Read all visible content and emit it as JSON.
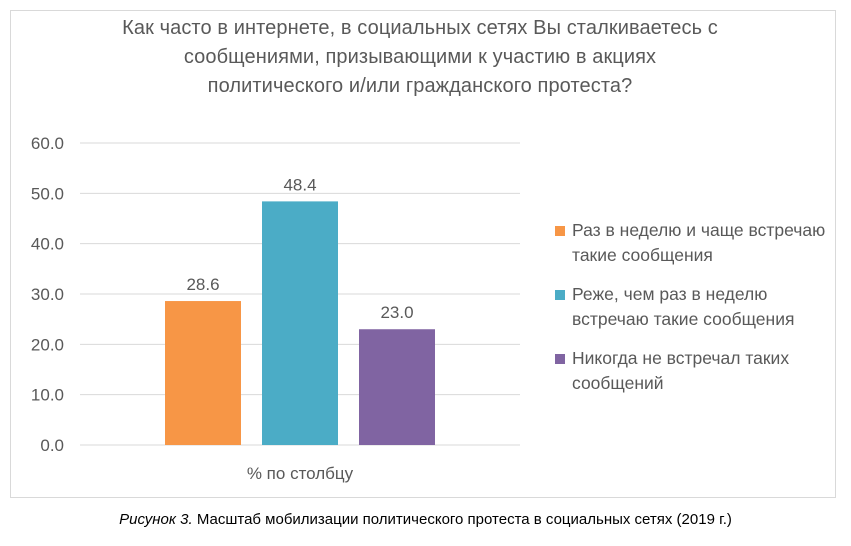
{
  "chart_data": {
    "type": "bar",
    "title": "Как часто в интернете, в социальных сетях Вы сталкиваетесь с сообщениями, призывающими к участию в акциях политического и/или гражданского протеста?",
    "title_lines": [
      "Как часто в интернете, в социальных сетях Вы сталкиваетесь с",
      "сообщениями, призывающими к участию в акциях",
      "политического и/или гражданского протеста?"
    ],
    "categories": [
      "% по столбцу"
    ],
    "series": [
      {
        "name": "Раз в неделю и чаще встречаю такие сообщения",
        "values": [
          28.6
        ],
        "color": "#f79646"
      },
      {
        "name": "Реже, чем раз в неделю встречаю такие сообщения",
        "values": [
          48.4
        ],
        "color": "#4bacc6"
      },
      {
        "name": "Никогда не встречал таких сообщений",
        "values": [
          23.0
        ],
        "color": "#8064a2"
      }
    ],
    "yticks": [
      "0.0",
      "10.0",
      "20.0",
      "30.0",
      "40.0",
      "50.0",
      "60.0"
    ],
    "ylim": [
      0,
      60
    ],
    "xlabel": "",
    "ylabel": "",
    "grid": true,
    "legend_position": "right"
  },
  "caption": {
    "prefix": "Рисунок 3.",
    "text": " Масштаб мобилизации политического протеста в социальных сетях (2019 г.)"
  }
}
